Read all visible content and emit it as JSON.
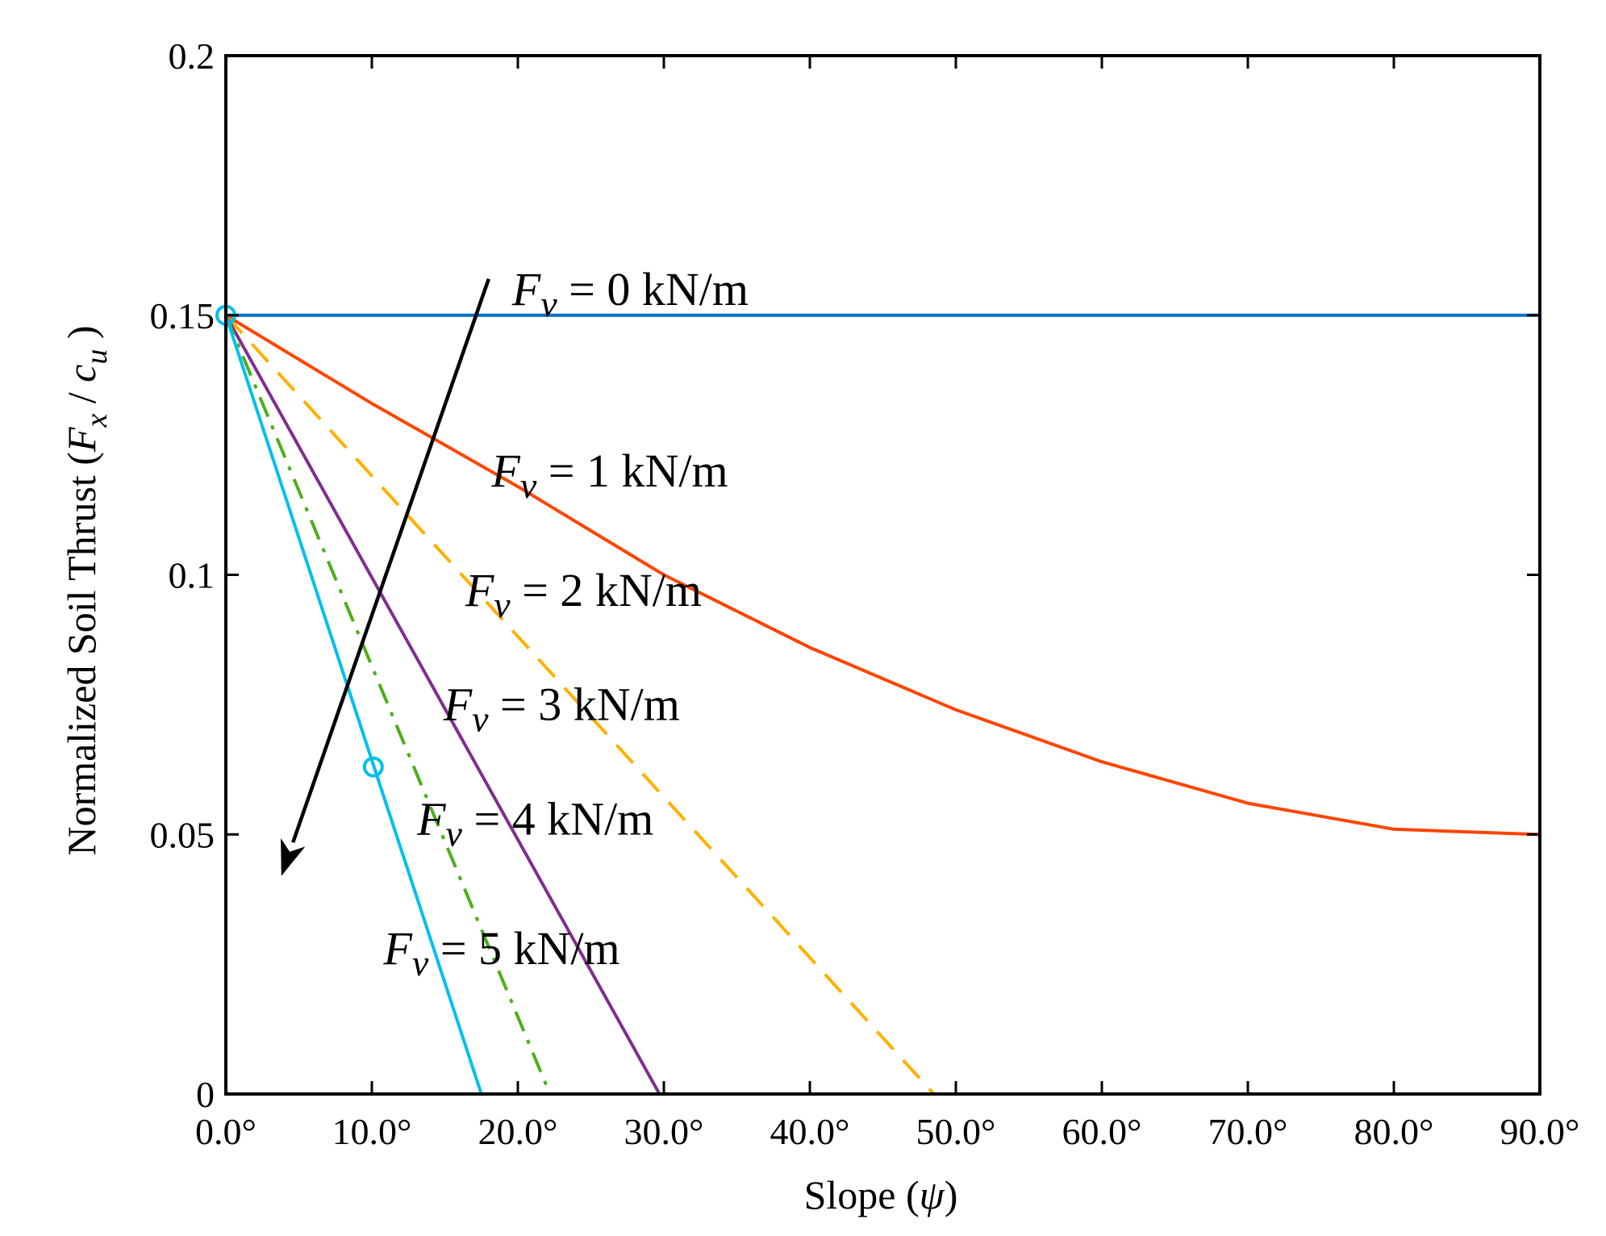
{
  "chart_data": {
    "type": "line",
    "title": "",
    "xlabel_text": "Slope (",
    "xlabel_var": "ψ",
    "xlabel_close": ")",
    "ylabel_text": "Normalized Soil Thrust (",
    "ylabel_var_x": "F",
    "ylabel_sub_x": "x",
    "ylabel_slash": " / ",
    "ylabel_var_c": "c",
    "ylabel_sub_u": "u",
    "ylabel_close": " )",
    "xlim": [
      0,
      90
    ],
    "ylim": [
      0,
      0.2
    ],
    "xticks": [
      0,
      10,
      20,
      30,
      40,
      50,
      60,
      70,
      80,
      90
    ],
    "xtick_labels": [
      "0.0°",
      "10.0°",
      "20.0°",
      "30.0°",
      "40.0°",
      "50.0°",
      "60.0°",
      "70.0°",
      "80.0°",
      "90.0°"
    ],
    "yticks": [
      0,
      0.05,
      0.1,
      0.15,
      0.2
    ],
    "ytick_labels": [
      "0",
      "0.05",
      "0.1",
      "0.15",
      "0.2"
    ],
    "grid": false,
    "series": [
      {
        "name": "Fv = 0 kN/m",
        "color": "#0072BD",
        "dash": "solid",
        "x": [
          0,
          90
        ],
        "y": [
          0.15,
          0.15
        ]
      },
      {
        "name": "Fv = 1 kN/m",
        "color": "#FF4500",
        "dash": "solid",
        "x": [
          0,
          10,
          20,
          30,
          40,
          50,
          60,
          70,
          80,
          90
        ],
        "y": [
          0.15,
          0.133,
          0.117,
          0.1,
          0.086,
          0.074,
          0.064,
          0.056,
          0.051,
          0.05
        ]
      },
      {
        "name": "Fv = 2 kN/m",
        "color": "#FFB000",
        "dash": "dashed",
        "x": [
          0,
          48.5
        ],
        "y": [
          0.15,
          0
        ]
      },
      {
        "name": "Fv = 3 kN/m",
        "color": "#7E2F8E",
        "dash": "solid",
        "x": [
          0,
          29.7
        ],
        "y": [
          0.15,
          0
        ]
      },
      {
        "name": "Fv = 4 kN/m",
        "color": "#4DAF1A",
        "dash": "dashdot",
        "x": [
          0,
          22.2
        ],
        "y": [
          0.15,
          0
        ]
      },
      {
        "name": "Fv = 5 kN/m",
        "color": "#00BFEF",
        "dash": "solid",
        "x": [
          0,
          17.5
        ],
        "y": [
          0.15,
          0
        ]
      }
    ],
    "markers": [
      {
        "x": 0,
        "y": 0.15,
        "color": "#00BFEF"
      },
      {
        "x": 10.1,
        "y": 0.063,
        "color": "#00BFEF"
      }
    ],
    "arrow": {
      "from": [
        18,
        0.157
      ],
      "to": [
        3.8,
        0.042
      ],
      "color": "#000000"
    },
    "annotations": [
      {
        "var": "F",
        "sub": "v",
        "text": " = 0 kN/m",
        "x": 19.6,
        "y": 0.152
      },
      {
        "var": "F",
        "sub": "v",
        "text": " = 1 kN/m",
        "x": 18.2,
        "y": 0.117
      },
      {
        "var": "F",
        "sub": "v",
        "text": " = 2 kN/m",
        "x": 16.4,
        "y": 0.094
      },
      {
        "var": "F",
        "sub": "v",
        "text": " = 3 kN/m",
        "x": 14.9,
        "y": 0.072
      },
      {
        "var": "F",
        "sub": "v",
        "text": " = 4 kN/m",
        "x": 13.1,
        "y": 0.05
      },
      {
        "var": "F",
        "sub": "v",
        "text": " = 5 kN/m",
        "x": 10.8,
        "y": 0.025
      }
    ]
  }
}
